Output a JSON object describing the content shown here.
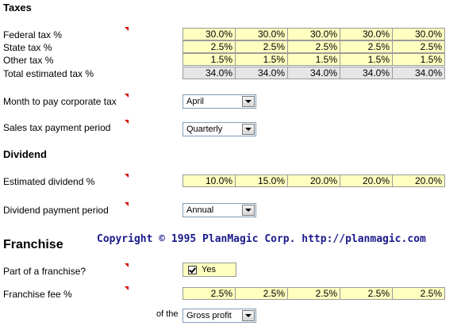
{
  "taxes": {
    "title": "Taxes",
    "rows": [
      {
        "label": "Federal tax %",
        "values": [
          "30.0%",
          "30.0%",
          "30.0%",
          "30.0%",
          "30.0%"
        ]
      },
      {
        "label": "State tax %",
        "values": [
          "2.5%",
          "2.5%",
          "2.5%",
          "2.5%",
          "2.5%"
        ]
      },
      {
        "label": "Other tax %",
        "values": [
          "1.5%",
          "1.5%",
          "1.5%",
          "1.5%",
          "1.5%"
        ]
      },
      {
        "label": "Total estimated tax %",
        "values": [
          "34.0%",
          "34.0%",
          "34.0%",
          "34.0%",
          "34.0%"
        ]
      }
    ],
    "month_label": "Month to pay corporate tax",
    "month_value": "April",
    "sales_label": "Sales tax payment period",
    "sales_value": "Quarterly"
  },
  "dividend": {
    "title": "Dividend",
    "estimate_label": "Estimated dividend %",
    "estimate_values": [
      "10.0%",
      "15.0%",
      "20.0%",
      "20.0%",
      "20.0%"
    ],
    "period_label": "Dividend payment period",
    "period_value": "Annual"
  },
  "franchise": {
    "title": "Franchise",
    "part_label": "Part of a franchise?",
    "part_value": "Yes",
    "part_checked": true,
    "fee_label": "Franchise fee %",
    "fee_values": [
      "2.5%",
      "2.5%",
      "2.5%",
      "2.5%",
      "2.5%"
    ],
    "of_the_label": "of the",
    "base_value": "Gross profit"
  },
  "copyright": "Copyright © 1995 PlanMagic Corp. http://planmagic.com",
  "colors": {
    "input_cell": "#ffffc0",
    "total_cell": "#e6e6e6",
    "comment_marker": "#d40000",
    "copyright_text": "#1a1a8c"
  }
}
